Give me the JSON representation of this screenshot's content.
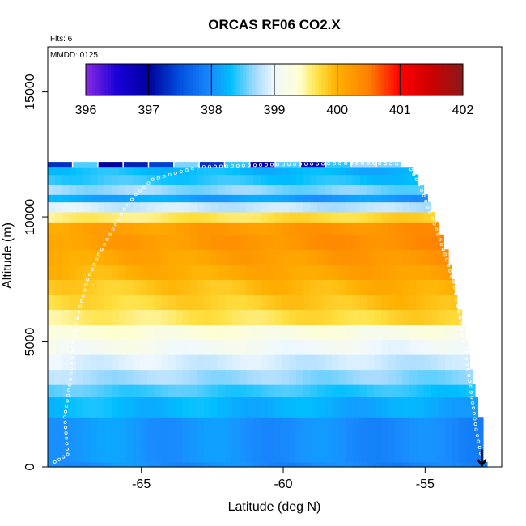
{
  "chart_data": {
    "type": "heatmap",
    "title": "ORCAS RF06 CO2.X",
    "subtitle_flights": "Flts: 6",
    "date_label": "MMDD: 0125",
    "xlabel": "Latitude (deg N)",
    "ylabel": "Altitude (m)",
    "xlim": [
      -68.3,
      -52.3
    ],
    "ylim": [
      0,
      16800
    ],
    "x_ticks": [
      -65,
      -60,
      -55
    ],
    "x_tick_labels": [
      "-65",
      "-60",
      "-55"
    ],
    "y_ticks": [
      0,
      5000,
      10000,
      15000
    ],
    "y_tick_labels": [
      "0",
      "5000",
      "10000",
      "15000"
    ],
    "colorbar": {
      "min": 396,
      "max": 402,
      "ticks": [
        396,
        397,
        398,
        399,
        400,
        401,
        402
      ],
      "tick_labels": [
        "396",
        "397",
        "398",
        "399",
        "400",
        "401",
        "402"
      ],
      "stops": [
        {
          "value": 396.0,
          "color": "#8a2be2"
        },
        {
          "value": 396.5,
          "color": "#1800d8"
        },
        {
          "value": 397.0,
          "color": "#00009e"
        },
        {
          "value": 397.5,
          "color": "#0050e0"
        },
        {
          "value": 398.0,
          "color": "#1a8cff"
        },
        {
          "value": 398.3,
          "color": "#00bfff"
        },
        {
          "value": 398.7,
          "color": "#a6dbff"
        },
        {
          "value": 399.0,
          "color": "#f0f8ff"
        },
        {
          "value": 399.4,
          "color": "#ffffd0"
        },
        {
          "value": 399.7,
          "color": "#ffe040"
        },
        {
          "value": 400.0,
          "color": "#ffb000"
        },
        {
          "value": 400.5,
          "color": "#ff8000"
        },
        {
          "value": 401.0,
          "color": "#ff0000"
        },
        {
          "value": 401.5,
          "color": "#cc0000"
        },
        {
          "value": 402.0,
          "color": "#8b1a1a"
        }
      ]
    },
    "bands": [
      {
        "alt_min": 0,
        "alt_max": 200,
        "value": 398.05
      },
      {
        "alt_min": 200,
        "alt_max": 2000,
        "value": 398.1
      },
      {
        "alt_min": 2000,
        "alt_max": 2800,
        "value": 398.3
      },
      {
        "alt_min": 2800,
        "alt_max": 3300,
        "value": 398.5
      },
      {
        "alt_min": 3300,
        "alt_max": 3900,
        "value": 398.75
      },
      {
        "alt_min": 3900,
        "alt_max": 4500,
        "value": 398.95
      },
      {
        "alt_min": 4500,
        "alt_max": 5100,
        "value": 399.15
      },
      {
        "alt_min": 5100,
        "alt_max": 5700,
        "value": 399.35
      },
      {
        "alt_min": 5700,
        "alt_max": 6300,
        "value": 399.55
      },
      {
        "alt_min": 6300,
        "alt_max": 6900,
        "value": 399.7
      },
      {
        "alt_min": 6900,
        "alt_max": 7500,
        "value": 399.8
      },
      {
        "alt_min": 7500,
        "alt_max": 8100,
        "value": 399.95
      },
      {
        "alt_min": 8100,
        "alt_max": 8700,
        "value": 400.05
      },
      {
        "alt_min": 8700,
        "alt_max": 9300,
        "value": 400.15
      },
      {
        "alt_min": 9300,
        "alt_max": 9800,
        "value": 400.1
      },
      {
        "alt_min": 9800,
        "alt_max": 10200,
        "value": 399.55
      },
      {
        "alt_min": 10200,
        "alt_max": 10600,
        "value": 398.9
      },
      {
        "alt_min": 10600,
        "alt_max": 10900,
        "value": 398.2
      },
      {
        "alt_min": 10900,
        "alt_max": 11300,
        "value": 398.7
      },
      {
        "alt_min": 11300,
        "alt_max": 11700,
        "value": 398.45
      },
      {
        "alt_min": 11700,
        "alt_max": 12000,
        "value": 398.35
      }
    ],
    "top_row_values": [
      397.3,
      398.5,
      397.0,
      397.2,
      397.4,
      398.6,
      397.3,
      398.4,
      397.0,
      398.5,
      397.1,
      398.4,
      398.7,
      398.6
    ],
    "coverage_edge": [
      {
        "alt": 0,
        "lat": -52.8
      },
      {
        "alt": 2800,
        "lat": -53.2
      },
      {
        "alt": 4000,
        "lat": -53.4
      },
      {
        "alt": 5600,
        "lat": -53.6
      },
      {
        "alt": 6700,
        "lat": -53.9
      },
      {
        "alt": 8100,
        "lat": -54.1
      },
      {
        "alt": 9200,
        "lat": -54.4
      },
      {
        "alt": 10100,
        "lat": -54.7
      },
      {
        "alt": 11000,
        "lat": -55.0
      },
      {
        "alt": 11800,
        "lat": -55.4
      },
      {
        "alt": 12200,
        "lat": -55.8
      }
    ],
    "flight_track": [
      {
        "lat": -68.05,
        "alt": 200
      },
      {
        "lat": -67.6,
        "alt": 500
      },
      {
        "lat": -67.7,
        "alt": 2000
      },
      {
        "lat": -67.5,
        "alt": 3500
      },
      {
        "lat": -67.4,
        "alt": 5000
      },
      {
        "lat": -67.2,
        "alt": 6200
      },
      {
        "lat": -66.9,
        "alt": 7500
      },
      {
        "lat": -66.5,
        "alt": 8500
      },
      {
        "lat": -66.0,
        "alt": 9500
      },
      {
        "lat": -65.6,
        "alt": 10300
      },
      {
        "lat": -65.2,
        "alt": 10900
      },
      {
        "lat": -64.6,
        "alt": 11500
      },
      {
        "lat": -63.0,
        "alt": 12000
      },
      {
        "lat": -60.0,
        "alt": 12100
      },
      {
        "lat": -57.0,
        "alt": 12150
      },
      {
        "lat": -55.6,
        "alt": 12100
      },
      {
        "lat": -55.2,
        "alt": 11300
      },
      {
        "lat": -54.9,
        "alt": 10400
      },
      {
        "lat": -54.6,
        "alt": 9500
      },
      {
        "lat": -54.3,
        "alt": 8500
      },
      {
        "lat": -54.0,
        "alt": 7400
      },
      {
        "lat": -53.8,
        "alt": 6200
      },
      {
        "lat": -53.6,
        "alt": 4800
      },
      {
        "lat": -53.4,
        "alt": 3200
      },
      {
        "lat": -53.2,
        "alt": 1500
      },
      {
        "lat": -53.0,
        "alt": 300
      }
    ],
    "arrow": {
      "lat": -53.0,
      "alt_start": 700,
      "alt_end": 0
    }
  }
}
